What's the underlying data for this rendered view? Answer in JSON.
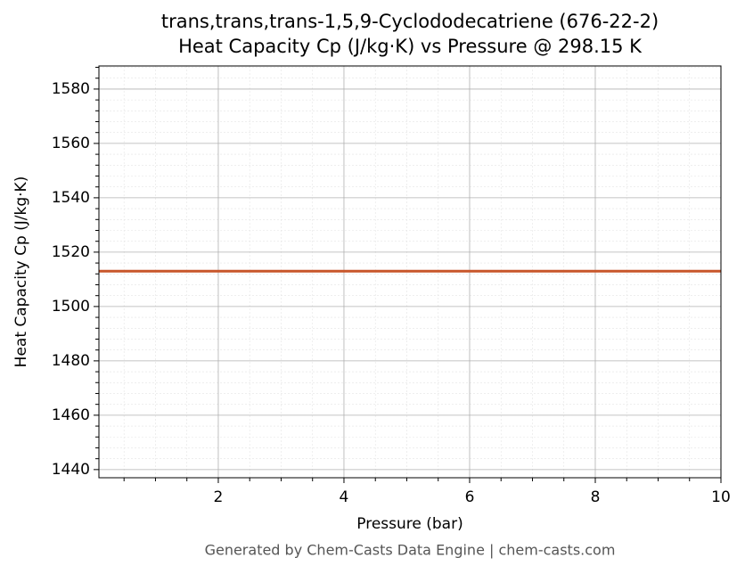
{
  "chart_data": {
    "type": "line",
    "title": "trans,trans,trans-1,5,9-Cyclododecatriene (676-22-2)",
    "subtitle": "Heat Capacity Cp (J/kg·K) vs Pressure @ 298.15 K",
    "x_label": "Pressure (bar)",
    "y_label": "Heat Capacity Cp (J/kg·K)",
    "footer": "Generated by Chem-Casts Data Engine | chem-casts.com",
    "x": [
      0.1,
      10
    ],
    "series": [
      {
        "name": "Cp",
        "color": "#c8562a",
        "values": [
          1513,
          1513
        ]
      }
    ],
    "xlim": [
      0.1,
      10
    ],
    "xticks": [
      2,
      4,
      6,
      8,
      10
    ],
    "xminorticks": [
      0.5,
      1,
      1.5,
      2.5,
      3,
      3.5,
      4.5,
      5,
      5.5,
      6.5,
      7,
      7.5,
      8.5,
      9,
      9.5
    ],
    "ylim": [
      1437,
      1588.5
    ],
    "yticks": [
      1440,
      1460,
      1480,
      1500,
      1520,
      1540,
      1560,
      1580
    ],
    "yminorticks": [
      1444,
      1448,
      1452,
      1456,
      1464,
      1468,
      1472,
      1476,
      1484,
      1488,
      1492,
      1496,
      1504,
      1508,
      1512,
      1516,
      1524,
      1528,
      1532,
      1536,
      1544,
      1548,
      1552,
      1556,
      1564,
      1568,
      1572,
      1576,
      1584,
      1588
    ],
    "grid": true
  }
}
